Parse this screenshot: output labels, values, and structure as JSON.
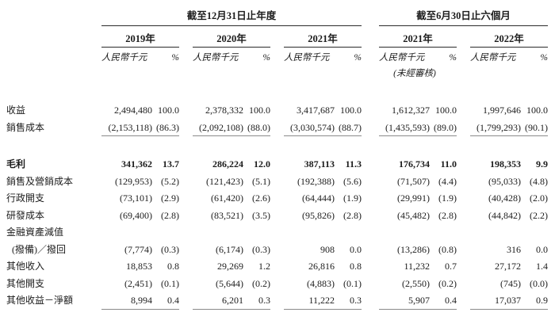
{
  "palette": {
    "background": "#ffffff",
    "text": "#1c1c1c",
    "rule_dark": "#2b2b2b",
    "rule_gray": "#8a8a8a"
  },
  "header": {
    "sections": [
      {
        "title": "截至12月31日止年度",
        "years": [
          "2019年",
          "2020年",
          "2021年"
        ]
      },
      {
        "title": "截至6月30日止六個月",
        "years": [
          "2021年",
          "2022年"
        ]
      }
    ],
    "unit_label": "人民幣千元",
    "percent_label": "%",
    "unaudited_note": "(未經審核)"
  },
  "rows": [
    {
      "label": "收益",
      "cells": [
        [
          "2,494,480",
          "100.0"
        ],
        [
          "2,378,332",
          "100.0"
        ],
        [
          "3,417,687",
          "100.0"
        ],
        [
          "1,612,327",
          "100.0"
        ],
        [
          "1,997,646",
          "100.0"
        ]
      ]
    },
    {
      "label": "銷售成本",
      "underline_after": true,
      "cells": [
        [
          "(2,153,118)",
          "(86.3)"
        ],
        [
          "(2,092,108)",
          "(88.0)"
        ],
        [
          "(3,030,574)",
          "(88.7)"
        ],
        [
          "(1,435,593)",
          "(89.0)"
        ],
        [
          "(1,799,293)",
          "(90.1)"
        ]
      ]
    },
    {
      "label": "毛利",
      "bold": true,
      "spacer_before": true,
      "cells": [
        [
          "341,362",
          "13.7"
        ],
        [
          "286,224",
          "12.0"
        ],
        [
          "387,113",
          "11.3"
        ],
        [
          "176,734",
          "11.0"
        ],
        [
          "198,353",
          "9.9"
        ]
      ]
    },
    {
      "label": "銷售及營銷成本",
      "cells": [
        [
          "(129,953)",
          "(5.2)"
        ],
        [
          "(121,423)",
          "(5.1)"
        ],
        [
          "(192,388)",
          "(5.6)"
        ],
        [
          "(71,507)",
          "(4.4)"
        ],
        [
          "(95,033)",
          "(4.8)"
        ]
      ]
    },
    {
      "label": "行政開支",
      "cells": [
        [
          "(73,101)",
          "(2.9)"
        ],
        [
          "(61,420)",
          "(2.6)"
        ],
        [
          "(64,444)",
          "(1.9)"
        ],
        [
          "(29,991)",
          "(1.9)"
        ],
        [
          "(40,428)",
          "(2.0)"
        ]
      ]
    },
    {
      "label": "研發成本",
      "cells": [
        [
          "(69,400)",
          "(2.8)"
        ],
        [
          "(83,521)",
          "(3.5)"
        ],
        [
          "(95,826)",
          "(2.8)"
        ],
        [
          "(45,482)",
          "(2.8)"
        ],
        [
          "(44,842)",
          "(2.2)"
        ]
      ]
    },
    {
      "label": "金融資產減值",
      "cells": []
    },
    {
      "label": "(撥備)／撥回",
      "indent": true,
      "cells": [
        [
          "(7,774)",
          "(0.3)"
        ],
        [
          "(6,174)",
          "(0.3)"
        ],
        [
          "908",
          "0.0"
        ],
        [
          "(13,286)",
          "(0.8)"
        ],
        [
          "316",
          "0.0"
        ]
      ]
    },
    {
      "label": "其他收入",
      "cells": [
        [
          "18,853",
          "0.8"
        ],
        [
          "29,269",
          "1.2"
        ],
        [
          "26,816",
          "0.8"
        ],
        [
          "11,232",
          "0.7"
        ],
        [
          "27,172",
          "1.4"
        ]
      ]
    },
    {
      "label": "其他開支",
      "cells": [
        [
          "(2,451)",
          "(0.1)"
        ],
        [
          "(5,644)",
          "(0.2)"
        ],
        [
          "(4,883)",
          "(0.1)"
        ],
        [
          "(2,550)",
          "(0.2)"
        ],
        [
          "(745)",
          "(0.0)"
        ]
      ]
    },
    {
      "label": "其他收益－淨額",
      "underline_after": true,
      "cells": [
        [
          "8,994",
          "0.4"
        ],
        [
          "6,201",
          "0.3"
        ],
        [
          "11,222",
          "0.3"
        ],
        [
          "5,907",
          "0.4"
        ],
        [
          "17,037",
          "0.9"
        ]
      ]
    }
  ]
}
